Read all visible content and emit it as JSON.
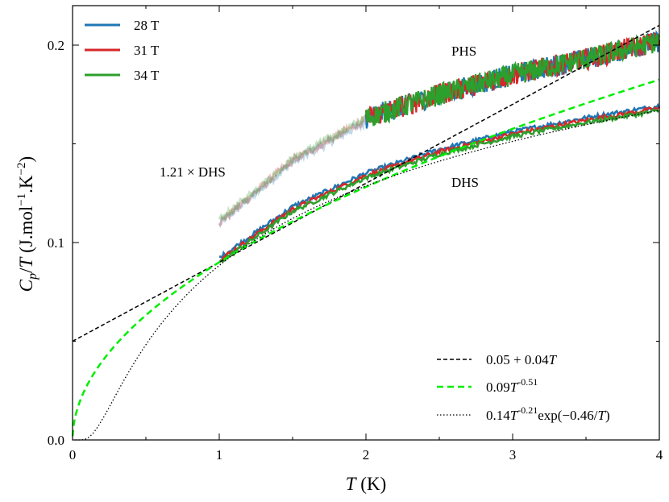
{
  "chart_data": {
    "type": "line",
    "title": "",
    "xlabel_var": "T",
    "xlabel_unit": " (K)",
    "ylabel_var": "C",
    "ylabel_sub": "p",
    "ylabel_mid": "/",
    "ylabel_var2": "T",
    "ylabel_unit_open": " (J.mol",
    "ylabel_exp1": "−1",
    "ylabel_unit_mid": ".K",
    "ylabel_exp2": "−2",
    "ylabel_unit_close": ")",
    "xlim": [
      0,
      4
    ],
    "ylim": [
      0,
      0.22
    ],
    "x_ticks": [
      0,
      1,
      2,
      3,
      4
    ],
    "x_tick_labels": [
      "0",
      "1",
      "2",
      "3",
      "4"
    ],
    "y_ticks": [
      0,
      0.1,
      0.2
    ],
    "y_tick_labels": [
      "0.0",
      "0.1",
      "0.2"
    ],
    "grid": false,
    "series": [
      {
        "name": "28 T",
        "color": "#1f77b4",
        "group": "data"
      },
      {
        "name": "31 T",
        "color": "#d62728",
        "group": "data"
      },
      {
        "name": "34 T",
        "color": "#2ca02c",
        "group": "data"
      }
    ],
    "fits": [
      {
        "name": "0.05 + 0.04T",
        "label_main": "0.05 + 0.04",
        "label_var": "T",
        "color": "#000000",
        "style": "dashed",
        "model": "linear"
      },
      {
        "name": "0.09T^-0.51",
        "label_main": "0.09",
        "label_var": "T",
        "label_sup": "-0.51",
        "color": "#00ee00",
        "style": "dashed",
        "model": "power"
      },
      {
        "name": "0.14T^-0.21 exp(-0.46/T)",
        "label_main": "0.14",
        "label_var": "T",
        "label_sup": "-0.21",
        "label_tail_a": "exp(−0.46/",
        "label_tail_var": "T",
        "label_tail_b": ")",
        "color": "#000000",
        "style": "dotted",
        "model": "exp"
      }
    ],
    "dhs_points": {
      "x": [
        1.0,
        1.5,
        2.0,
        2.5,
        3.0,
        3.5,
        4.0
      ],
      "y": [
        0.091,
        0.117,
        0.134,
        0.146,
        0.155,
        0.162,
        0.168
      ]
    },
    "phs_points": {
      "x": [
        2.0,
        2.5,
        3.0,
        3.5,
        4.0
      ],
      "y": [
        0.163,
        0.175,
        0.185,
        0.193,
        0.202
      ]
    },
    "annotations": [
      {
        "id": "phs",
        "text": "PHS",
        "x": 2.68,
        "y": 0.197
      },
      {
        "id": "dhs",
        "text": "DHS",
        "x": 2.68,
        "y": 0.129
      },
      {
        "id": "scaled",
        "text": "1.21 × DHS",
        "x": 0.87,
        "y": 0.134
      }
    ],
    "legend_position": "top-left",
    "fit_legend_position": "bottom-right"
  }
}
